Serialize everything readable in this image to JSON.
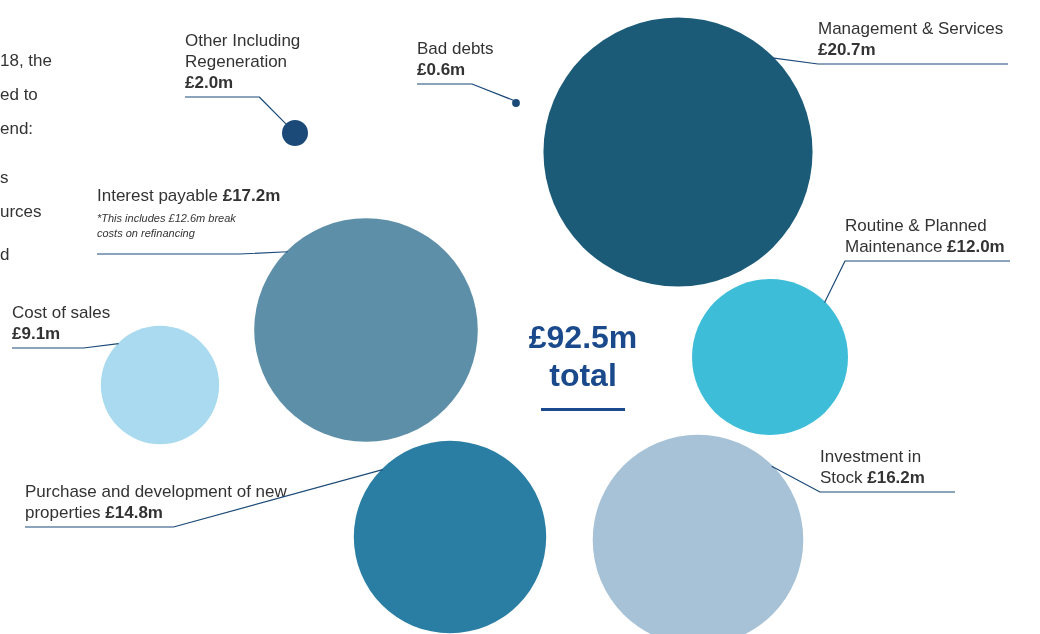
{
  "chart_data": {
    "type": "other",
    "categories": [
      "Other Including Regeneration",
      "Bad debts",
      "Management & Services",
      "Interest payable",
      "Routine & Planned Maintenance",
      "Cost of sales",
      "Purchase and development of new properties",
      "Investment in Stock"
    ],
    "values": [
      2.0,
      0.6,
      20.7,
      17.2,
      12.0,
      9.1,
      14.8,
      16.2
    ],
    "value_labels": [
      "£2.0m",
      "£0.6m",
      "£20.7m",
      "£17.2m",
      "£12.0m",
      "£9.1m",
      "£14.8m",
      "£16.2m"
    ],
    "colors": [
      "#1b4a78",
      "#1b4a78",
      "#1b5b78",
      "#5e8fa9",
      "#3dbdd8",
      "#a9daef",
      "#2a7ea4",
      "#a7c2d6"
    ],
    "annotations": [
      "£92.5m total",
      "*This includes £12.6m break costs on refinancing",
      "18, the",
      "ed to",
      "end:",
      "s",
      "urces",
      "d"
    ]
  }
}
